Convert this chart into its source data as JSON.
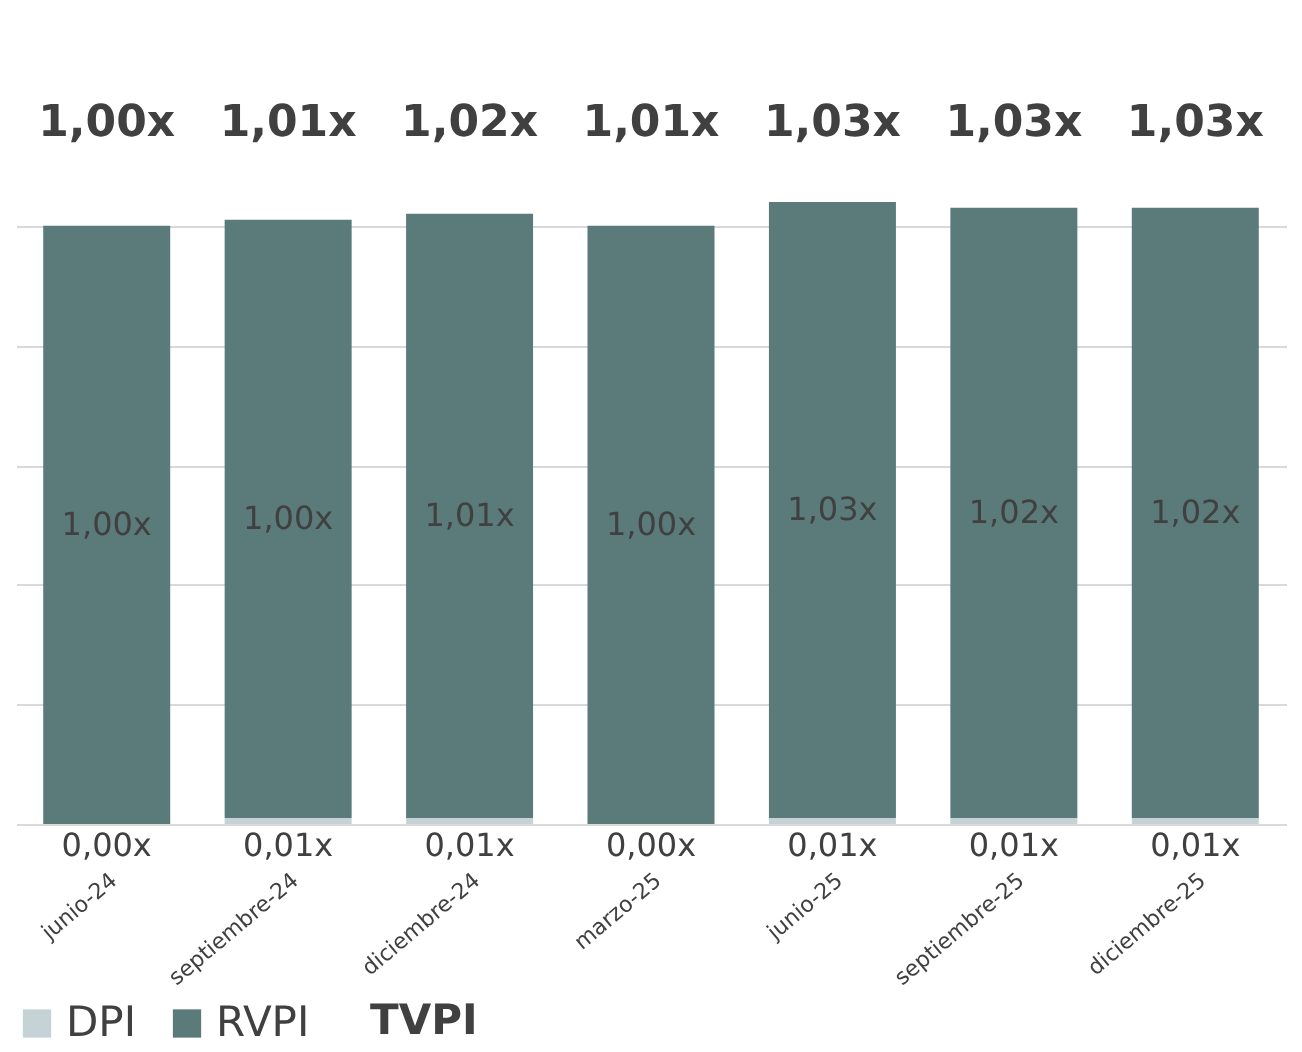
{
  "chart_data": {
    "type": "bar",
    "stacked": true,
    "categories": [
      "junio-24",
      "septiembre-24",
      "diciembre-24",
      "marzo-25",
      "junio-25",
      "septiembre-25",
      "diciembre-25"
    ],
    "series": [
      {
        "name": "DPI",
        "color": "#c5d3d6",
        "values": [
          0.0,
          0.01,
          0.01,
          0.0,
          0.01,
          0.01,
          0.01
        ],
        "value_labels": [
          "0,00x",
          "0,01x",
          "0,01x",
          "0,00x",
          "0,01x",
          "0,01x",
          "0,01x"
        ]
      },
      {
        "name": "RVPI",
        "color": "#5b7b7b",
        "values": [
          1.0,
          1.0,
          1.01,
          1.0,
          1.03,
          1.02,
          1.02
        ],
        "value_labels": [
          "1,00x",
          "1,00x",
          "1,01x",
          "1,00x",
          "1,03x",
          "1,02x",
          "1,02x"
        ]
      }
    ],
    "totals": [
      "1,00x",
      "1,01x",
      "1,02x",
      "1,01x",
      "1,03x",
      "1,03x",
      "1,03x"
    ],
    "annotations": [
      "TVPI"
    ],
    "yticks": [
      {
        "value": 0,
        "label": null
      },
      {
        "value": 0.2,
        "label": null
      },
      {
        "value": 0.4,
        "label": null
      },
      {
        "value": 0.6,
        "label": null
      },
      {
        "value": 0.8,
        "label": null
      },
      {
        "value": 1.0,
        "label": null
      }
    ],
    "grid": "y",
    "tick_labels": "x",
    "legend": "bottom"
  }
}
